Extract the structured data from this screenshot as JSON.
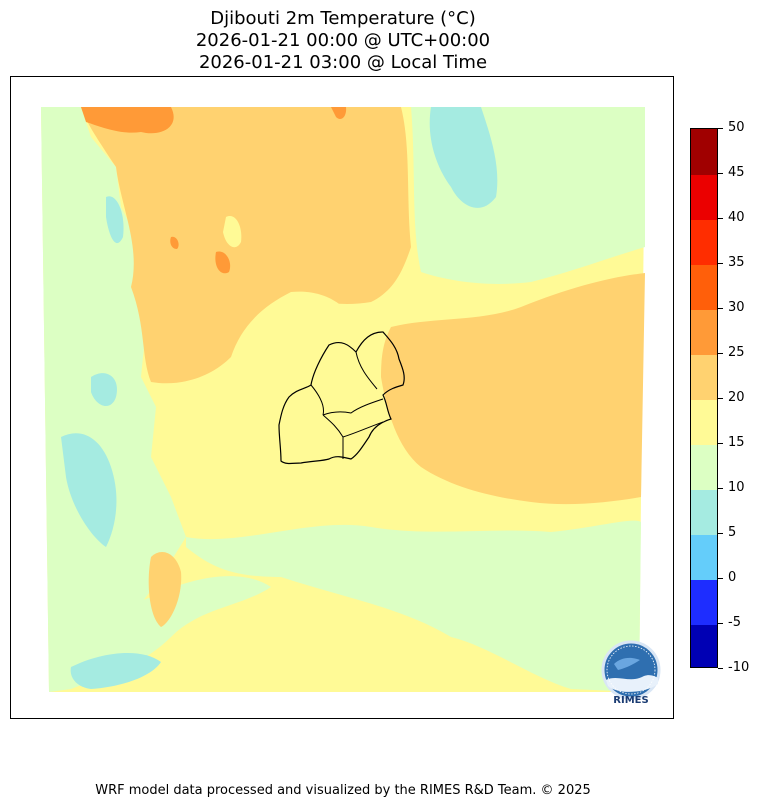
{
  "title": {
    "line1": "Djibouti 2m Temperature (°C)",
    "line2": "2026-01-21 00:00 @ UTC+00:00",
    "line3": "2026-01-21 03:00 @ Local Time"
  },
  "colorbar": {
    "levels": [
      "-10",
      "-5",
      "0",
      "5",
      "10",
      "15",
      "20",
      "25",
      "30",
      "35",
      "40",
      "45",
      "50"
    ],
    "colors": [
      "#0000b4",
      "#1e2dff",
      "#64cdfa",
      "#a5ebe1",
      "#dcffc3",
      "#fffa96",
      "#ffd270",
      "#ff9a37",
      "#ff5f0a",
      "#ff2d00",
      "#eb0000",
      "#a00000"
    ]
  },
  "logo": {
    "text": "RIMES",
    "icon": "rimes-globe-logo-icon"
  },
  "footer": "WRF model data processed and visualized by the RIMES R&D Team. © 2025"
}
